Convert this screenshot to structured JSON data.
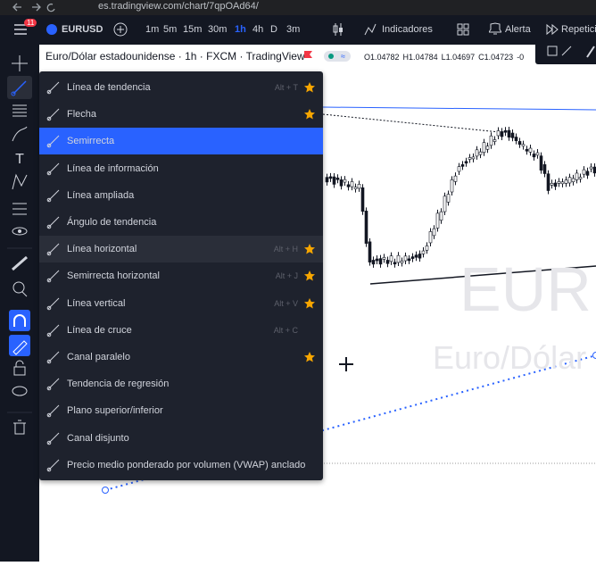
{
  "browser": {
    "url": "es.tradingview.com/chart/7qpOAd64/"
  },
  "toolbar": {
    "badge": "11",
    "symbol": "EURUSD",
    "intervals": [
      "1m",
      "5m",
      "15m",
      "30m",
      "1h",
      "4h",
      "D",
      "3m"
    ],
    "active_interval": 4,
    "indicators": "Indicadores",
    "alert": "Alerta",
    "replay": "Repetici"
  },
  "chart": {
    "name": "Euro/Dólar estadounidense",
    "interval": "1h",
    "source": "FXCM",
    "vendor": "TradingView",
    "ohlc": [
      "O1.04782",
      "H1.04784",
      "L1.04697",
      "C1.04723",
      "-0"
    ],
    "watermark_symbol": "EURUSD",
    "watermark_name": "Euro/Dólar"
  },
  "menu": {
    "highlighted": 2,
    "hovered": 6,
    "items": [
      {
        "label": "Línea de tendencia",
        "shortcut": "Alt + T",
        "starred": true
      },
      {
        "label": "Flecha",
        "shortcut": null,
        "starred": true
      },
      {
        "label": "Semirrecta",
        "shortcut": null,
        "starred": false
      },
      {
        "label": "Línea de información",
        "shortcut": null,
        "starred": false
      },
      {
        "label": "Línea ampliada",
        "shortcut": null,
        "starred": false
      },
      {
        "label": "Ángulo de tendencia",
        "shortcut": null,
        "starred": false
      },
      {
        "label": "Línea horizontal",
        "shortcut": "Alt + H",
        "starred": true
      },
      {
        "label": "Semirrecta horizontal",
        "shortcut": "Alt + J",
        "starred": true
      },
      {
        "label": "Línea vertical",
        "shortcut": "Alt + V",
        "starred": true
      },
      {
        "label": "Línea de cruce",
        "shortcut": "Alt + C",
        "starred": false
      },
      {
        "label": "Canal paralelo",
        "shortcut": null,
        "starred": true
      },
      {
        "label": "Tendencia de regresión",
        "shortcut": null,
        "starred": false
      },
      {
        "label": "Plano superior/inferior",
        "shortcut": null,
        "starred": false
      },
      {
        "label": "Canal disjunto",
        "shortcut": null,
        "starred": false
      },
      {
        "label": "Precio medio ponderado por volumen (VWAP) anclado",
        "shortcut": null,
        "starred": false
      }
    ]
  }
}
